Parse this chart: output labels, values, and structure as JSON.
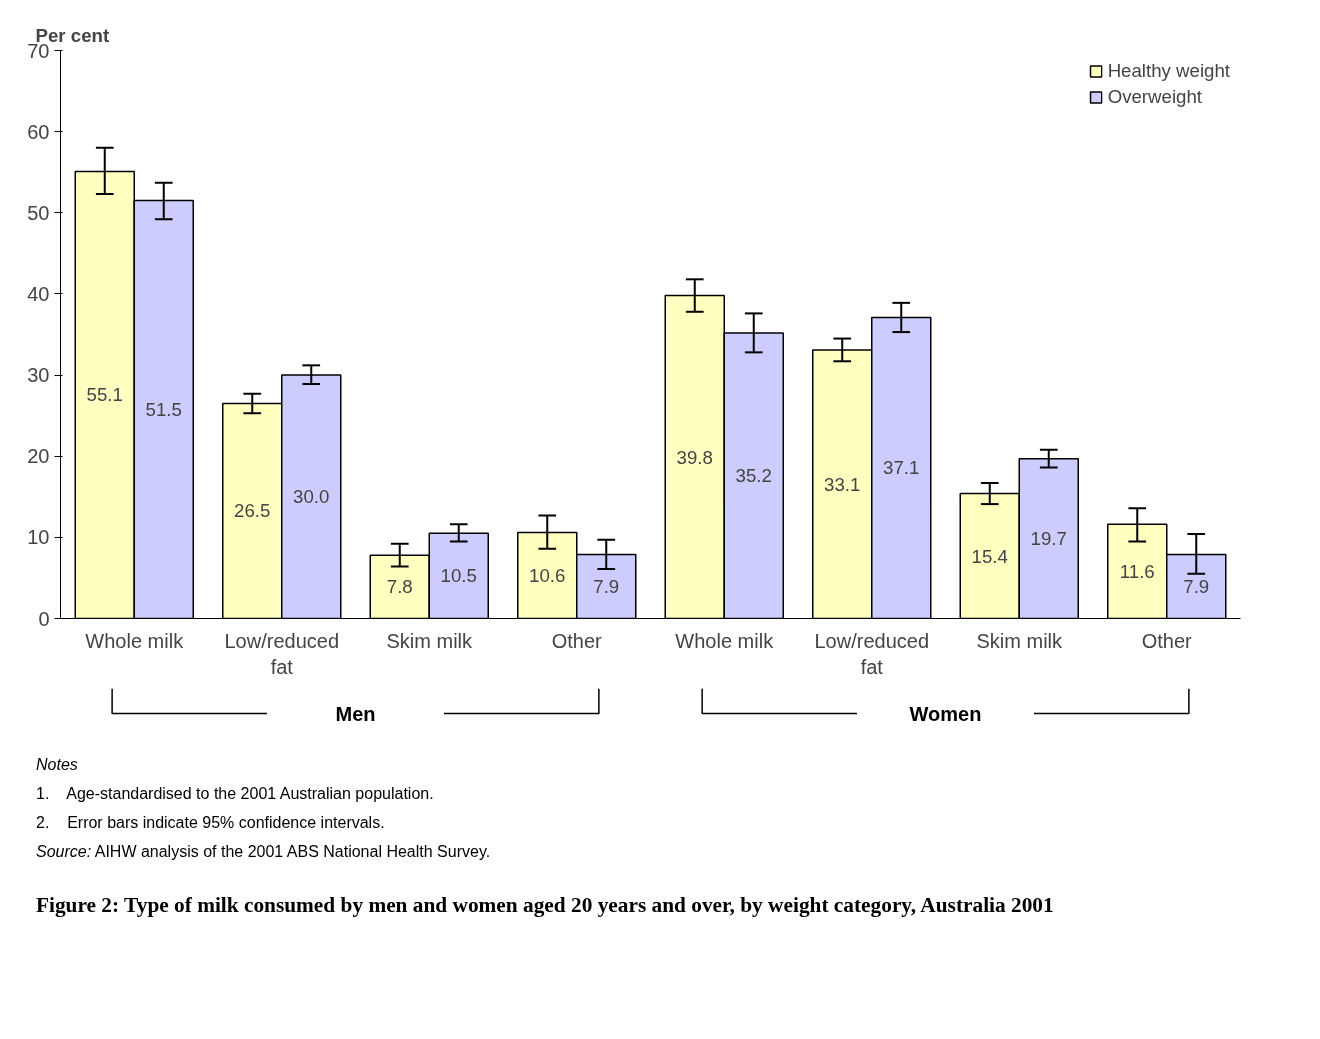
{
  "chart_data": {
    "type": "bar",
    "ylabel": "Per cent",
    "title": "Figure 2: Type of milk consumed by men and women aged 20 years and over, by weight category, Australia 2001",
    "categories": [
      "Whole milk",
      "Low/reduced fat",
      "Skim milk",
      "Other",
      "Whole milk",
      "Low/reduced fat",
      "Skim milk",
      "Other"
    ],
    "series": [
      {
        "name": "Healthy weight",
        "color": "#ffffc0",
        "values": [
          55.1,
          26.5,
          7.8,
          10.6,
          39.8,
          33.1,
          15.4,
          11.6
        ],
        "value_labels": [
          "55.1",
          "26.5",
          "7.8",
          "10.6",
          "39.8",
          "33.1",
          "15.4",
          "11.6"
        ],
        "errors": [
          [
            52.3,
            58.0
          ],
          [
            25.3,
            27.7
          ],
          [
            6.4,
            9.2
          ],
          [
            8.6,
            12.7
          ],
          [
            37.8,
            41.8
          ],
          [
            31.7,
            34.5
          ],
          [
            14.1,
            16.7
          ],
          [
            9.5,
            13.6
          ]
        ]
      },
      {
        "name": "Overweight",
        "color": "#ccccff",
        "values": [
          51.5,
          30.0,
          10.5,
          7.9,
          35.2,
          37.1,
          19.7,
          7.9
        ],
        "value_labels": [
          "51.5",
          "30.0",
          "10.5",
          "7.9",
          "35.2",
          "37.1",
          "19.7",
          "7.9"
        ],
        "errors": [
          [
            49.2,
            53.7
          ],
          [
            28.9,
            31.2
          ],
          [
            9.5,
            11.6
          ],
          [
            6.1,
            9.7
          ],
          [
            32.8,
            37.6
          ],
          [
            35.3,
            38.9
          ],
          [
            18.6,
            20.8
          ],
          [
            5.5,
            10.4
          ]
        ]
      }
    ],
    "ylim": [
      0,
      70
    ],
    "yticks": [
      0,
      10,
      20,
      30,
      40,
      50,
      60,
      70
    ],
    "grid": false,
    "legend": "top right",
    "annotations": [
      "Men",
      "Women",
      "Notes",
      "1.    Age-standardised to the 2001 Australian population.",
      "2.    Error bars indicate 95% confidence intervals.",
      "Source: AIHW analysis of the 2001 ABS National Health Survey."
    ]
  }
}
